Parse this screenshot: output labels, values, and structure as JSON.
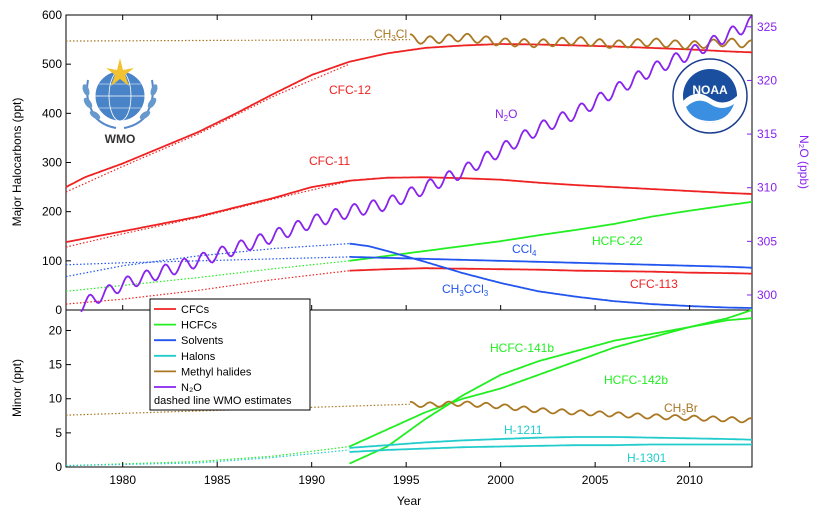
{
  "chart_data": [
    {
      "type": "line",
      "panel": "upper",
      "ylabel": "Major Halocarbons (ppt)",
      "y2label": "N2O (ppb)",
      "ylim": [
        0,
        600
      ],
      "y2lim": [
        298.6,
        326.1
      ],
      "xlim": [
        1977,
        2013.3
      ],
      "yticks": [
        0,
        100,
        200,
        300,
        400,
        500,
        600
      ],
      "y2ticks": [
        300,
        305,
        310,
        315,
        320,
        325
      ],
      "series": [
        {
          "name": "CFC-12",
          "group": "CFCs",
          "color": "#ee2222",
          "axis": "left",
          "style": "solid",
          "x": [
            1977,
            1978,
            1980,
            1982,
            1984,
            1986,
            1988,
            1990,
            1992,
            1994,
            1996,
            1998,
            2000,
            2002,
            2004,
            2006,
            2008,
            2010,
            2012,
            2013.3
          ],
          "y": [
            250,
            270,
            298,
            330,
            362,
            400,
            440,
            478,
            505,
            522,
            533,
            538,
            541,
            540,
            538,
            536,
            533,
            530,
            526,
            524
          ]
        },
        {
          "name": "CFC-12 WMO",
          "group": "CFCs",
          "color": "#ee2222",
          "axis": "left",
          "style": "dotted",
          "x": [
            1977,
            1980,
            1984,
            1988,
            1992
          ],
          "y": [
            240,
            292,
            358,
            435,
            500
          ]
        },
        {
          "name": "CFC-11",
          "group": "CFCs",
          "color": "#ee2222",
          "axis": "left",
          "style": "solid",
          "x": [
            1977,
            1980,
            1984,
            1988,
            1990,
            1992,
            1994,
            1996,
            1998,
            2000,
            2002,
            2004,
            2006,
            2008,
            2010,
            2012,
            2013.3
          ],
          "y": [
            138,
            160,
            190,
            228,
            250,
            263,
            269,
            270,
            268,
            265,
            259,
            254,
            250,
            246,
            242,
            238,
            236
          ]
        },
        {
          "name": "CFC-11 WMO",
          "group": "CFCs",
          "color": "#ee2222",
          "axis": "left",
          "style": "dotted",
          "x": [
            1977,
            1980,
            1984,
            1988,
            1992
          ],
          "y": [
            128,
            155,
            188,
            226,
            262
          ]
        },
        {
          "name": "CFC-113",
          "group": "CFCs",
          "color": "#ee2222",
          "axis": "left",
          "style": "solid",
          "x": [
            1992,
            1994,
            1996,
            1998,
            2000,
            2002,
            2004,
            2006,
            2008,
            2010,
            2012,
            2013.3
          ],
          "y": [
            80,
            83,
            85,
            84,
            83,
            82,
            80,
            79,
            78,
            76,
            75,
            74
          ]
        },
        {
          "name": "CFC-113 WMO",
          "group": "CFCs",
          "color": "#ee2222",
          "axis": "left",
          "style": "dotted",
          "x": [
            1977,
            1980,
            1984,
            1988,
            1992
          ],
          "y": [
            12,
            22,
            40,
            62,
            80
          ]
        },
        {
          "name": "HCFC-22",
          "group": "HCFCs",
          "color": "#22ee22",
          "axis": "left",
          "style": "solid",
          "x": [
            1992,
            1994,
            1996,
            1998,
            2000,
            2002,
            2004,
            2006,
            2008,
            2010,
            2012,
            2013.3
          ],
          "y": [
            100,
            110,
            120,
            130,
            140,
            152,
            163,
            175,
            190,
            202,
            213,
            220
          ]
        },
        {
          "name": "HCFC-22 WMO",
          "group": "HCFCs",
          "color": "#22ee22",
          "axis": "left",
          "style": "dotted",
          "x": [
            1977,
            1980,
            1984,
            1988,
            1992
          ],
          "y": [
            38,
            50,
            66,
            84,
            100
          ]
        },
        {
          "name": "CCl4",
          "group": "Solvents",
          "color": "#2255ee",
          "axis": "left",
          "style": "solid",
          "x": [
            1992,
            1994,
            1996,
            1998,
            2000,
            2002,
            2004,
            2006,
            2008,
            2010,
            2012,
            2013.3
          ],
          "y": [
            108,
            106,
            104,
            102,
            100,
            98,
            96,
            94,
            92,
            90,
            88,
            86
          ]
        },
        {
          "name": "CCl4 WMO",
          "group": "Solvents",
          "color": "#2255ee",
          "axis": "left",
          "style": "dotted",
          "x": [
            1977,
            1980,
            1984,
            1988,
            1992
          ],
          "y": [
            92,
            96,
            100,
            104,
            108
          ]
        },
        {
          "name": "CH3CCl3",
          "group": "Solvents",
          "color": "#2255ee",
          "axis": "left",
          "style": "solid",
          "x": [
            1992,
            1993,
            1994,
            1996,
            1998,
            2000,
            2002,
            2004,
            2006,
            2008,
            2010,
            2012,
            2013.3
          ],
          "y": [
            135,
            130,
            120,
            98,
            75,
            55,
            38,
            27,
            18,
            12,
            8,
            5,
            4
          ]
        },
        {
          "name": "CH3CCl3 WMO",
          "group": "Solvents",
          "color": "#2255ee",
          "axis": "left",
          "style": "dotted",
          "x": [
            1977,
            1980,
            1984,
            1988,
            1992
          ],
          "y": [
            68,
            90,
            110,
            125,
            135
          ]
        },
        {
          "name": "CH3Cl",
          "group": "Methyl halides",
          "color": "#aa7722",
          "axis": "left",
          "style": "solid",
          "wiggle": 8,
          "x": [
            1995.2,
            1996,
            1998,
            2000,
            2002,
            2004,
            2006,
            2008,
            2010,
            2012,
            2013.3
          ],
          "y": [
            553,
            548,
            555,
            545,
            542,
            548,
            540,
            545,
            538,
            545,
            540
          ]
        },
        {
          "name": "CH3Cl WMO",
          "group": "Methyl halides",
          "color": "#aa7722",
          "axis": "left",
          "style": "dotted",
          "x": [
            1977,
            1995.2
          ],
          "y": [
            547,
            550
          ]
        },
        {
          "name": "N2O",
          "group": "N2O",
          "color": "#8822ee",
          "axis": "right",
          "style": "solid",
          "wiggle": 0.6,
          "x": [
            1977.8,
            1980,
            1984,
            1988,
            1990,
            1992,
            1994,
            1996,
            1998,
            2000,
            2002,
            2004,
            2006,
            2008,
            2010,
            2012,
            2013.3
          ],
          "y": [
            299,
            301,
            303.2,
            305.5,
            306.8,
            307.8,
            308.5,
            310,
            311.5,
            313.5,
            315.5,
            317,
            319,
            321,
            322.5,
            324.2,
            325.4
          ]
        }
      ]
    },
    {
      "type": "line",
      "panel": "lower",
      "ylabel": "Minor (ppt)",
      "xlabel": "Year",
      "ylim": [
        0,
        23
      ],
      "xlim": [
        1977,
        2013.3
      ],
      "yticks": [
        0,
        5,
        10,
        15,
        20
      ],
      "xticks": [
        1980,
        1985,
        1990,
        1995,
        2000,
        2005,
        2010
      ],
      "series": [
        {
          "name": "HCFC-141b",
          "group": "HCFCs",
          "color": "#22ee22",
          "axis": "left",
          "style": "solid",
          "x": [
            1992,
            1994,
            1996,
            1998,
            2000,
            2002,
            2004,
            2006,
            2008,
            2010,
            2012,
            2013.3
          ],
          "y": [
            0.5,
            3,
            7,
            10.5,
            13.5,
            15.5,
            17,
            18.5,
            19.5,
            20.5,
            21.8,
            23
          ]
        },
        {
          "name": "HCFC-142b",
          "group": "HCFCs",
          "color": "#22ee22",
          "axis": "left",
          "style": "solid",
          "x": [
            1992,
            1994,
            1996,
            1998,
            2000,
            2002,
            2004,
            2006,
            2008,
            2010,
            2012,
            2013.3
          ],
          "y": [
            3,
            5.5,
            8,
            10,
            11.5,
            13.5,
            15.5,
            17.5,
            19,
            20.5,
            21.5,
            21.8
          ]
        },
        {
          "name": "HCFC WMO",
          "group": "HCFCs",
          "color": "#22ee22",
          "axis": "left",
          "style": "dotted",
          "x": [
            1977,
            1984,
            1988,
            1992
          ],
          "y": [
            0.2,
            0.8,
            1.6,
            3
          ]
        },
        {
          "name": "H-1211",
          "group": "Halons",
          "color": "#22cccc",
          "axis": "left",
          "style": "solid",
          "x": [
            1992,
            1994,
            1996,
            1998,
            2000,
            2002,
            2004,
            2006,
            2008,
            2010,
            2012,
            2013.3
          ],
          "y": [
            2.8,
            3.2,
            3.6,
            3.9,
            4.1,
            4.3,
            4.4,
            4.4,
            4.3,
            4.2,
            4.1,
            4.0
          ]
        },
        {
          "name": "H-1301",
          "group": "Halons",
          "color": "#22cccc",
          "axis": "left",
          "style": "solid",
          "x": [
            1992,
            1994,
            1996,
            1998,
            2000,
            2002,
            2004,
            2006,
            2008,
            2010,
            2012,
            2013.3
          ],
          "y": [
            2.2,
            2.5,
            2.7,
            2.9,
            3.0,
            3.1,
            3.2,
            3.2,
            3.3,
            3.3,
            3.3,
            3.3
          ]
        },
        {
          "name": "Halons WMO",
          "group": "Halons",
          "color": "#22cccc",
          "axis": "left",
          "style": "dotted",
          "x": [
            1977,
            1984,
            1988,
            1992
          ],
          "y": [
            0.2,
            0.6,
            1.4,
            2.5
          ]
        },
        {
          "name": "CH3Br",
          "group": "Methyl halides",
          "color": "#aa7722",
          "axis": "left",
          "style": "solid",
          "wiggle": 0.35,
          "x": [
            1995.2,
            1996,
            1998,
            2000,
            2002,
            2004,
            2006,
            2008,
            2010,
            2012,
            2013.3
          ],
          "y": [
            9.2,
            9.1,
            9.3,
            8.9,
            8.3,
            8.0,
            7.7,
            7.4,
            7.2,
            7.0,
            6.8
          ]
        },
        {
          "name": "CH3Br WMO",
          "group": "Methyl halides",
          "color": "#aa7722",
          "axis": "left",
          "style": "dotted",
          "x": [
            1977,
            1995.2
          ],
          "y": [
            7.6,
            9.2
          ]
        }
      ]
    }
  ],
  "panels": {
    "upper": {
      "ylabel": "Major Halocarbons (ppt)",
      "y2label": "N₂O (ppb)",
      "yticks": [
        "0",
        "100",
        "200",
        "300",
        "400",
        "500",
        "600"
      ],
      "y2ticks": [
        "300",
        "305",
        "310",
        "315",
        "320",
        "325"
      ]
    },
    "lower": {
      "ylabel": "Minor (ppt)",
      "xlabel": "Year",
      "yticks": [
        "0",
        "5",
        "10",
        "15",
        "20"
      ],
      "xticks": [
        "1980",
        "1985",
        "1990",
        "1995",
        "2000",
        "2005",
        "2010"
      ]
    }
  },
  "labels": {
    "cfc12": "CFC-12",
    "cfc11": "CFC-11",
    "cfc113": "CFC-113",
    "hcfc22": "HCFC-22",
    "ccl4_main": "CCl",
    "ccl4_sub": "4",
    "ch3ccl3_a": "CH",
    "ch3ccl3_s1": "3",
    "ch3ccl3_b": "CCl",
    "ch3ccl3_s2": "3",
    "ch3cl_a": "CH",
    "ch3cl_s": "3",
    "ch3cl_b": "Cl",
    "n2o_a": "N",
    "n2o_s": "2",
    "n2o_b": "O",
    "hcfc141b": "HCFC-141b",
    "hcfc142b": "HCFC-142b",
    "ch3br_a": "CH",
    "ch3br_s": "3",
    "ch3br_b": "Br",
    "h1211": "H-1211",
    "h1301": "H-1301"
  },
  "legend": {
    "placement": "lower-left",
    "items": [
      {
        "label": "CFCs",
        "color": "#ee2222"
      },
      {
        "label": "HCFCs",
        "color": "#22ee22"
      },
      {
        "label": "Solvents",
        "color": "#2255ee"
      },
      {
        "label": "Halons",
        "color": "#22cccc"
      },
      {
        "label": "Methyl halides",
        "color": "#aa7722"
      },
      {
        "label": "N₂O",
        "color": "#8822ee"
      }
    ],
    "note": "dashed line WMO estimates"
  },
  "logos": {
    "left": {
      "text": "WMO",
      "icon": "wmo-logo-icon"
    },
    "right": {
      "text": "NOAA",
      "icon": "noaa-logo-icon"
    }
  },
  "colors": {
    "cfc": "#ee2222",
    "hcfc": "#22ee22",
    "solvent": "#2255ee",
    "halon": "#22cccc",
    "methyl": "#aa7722",
    "n2o": "#8822ee"
  }
}
